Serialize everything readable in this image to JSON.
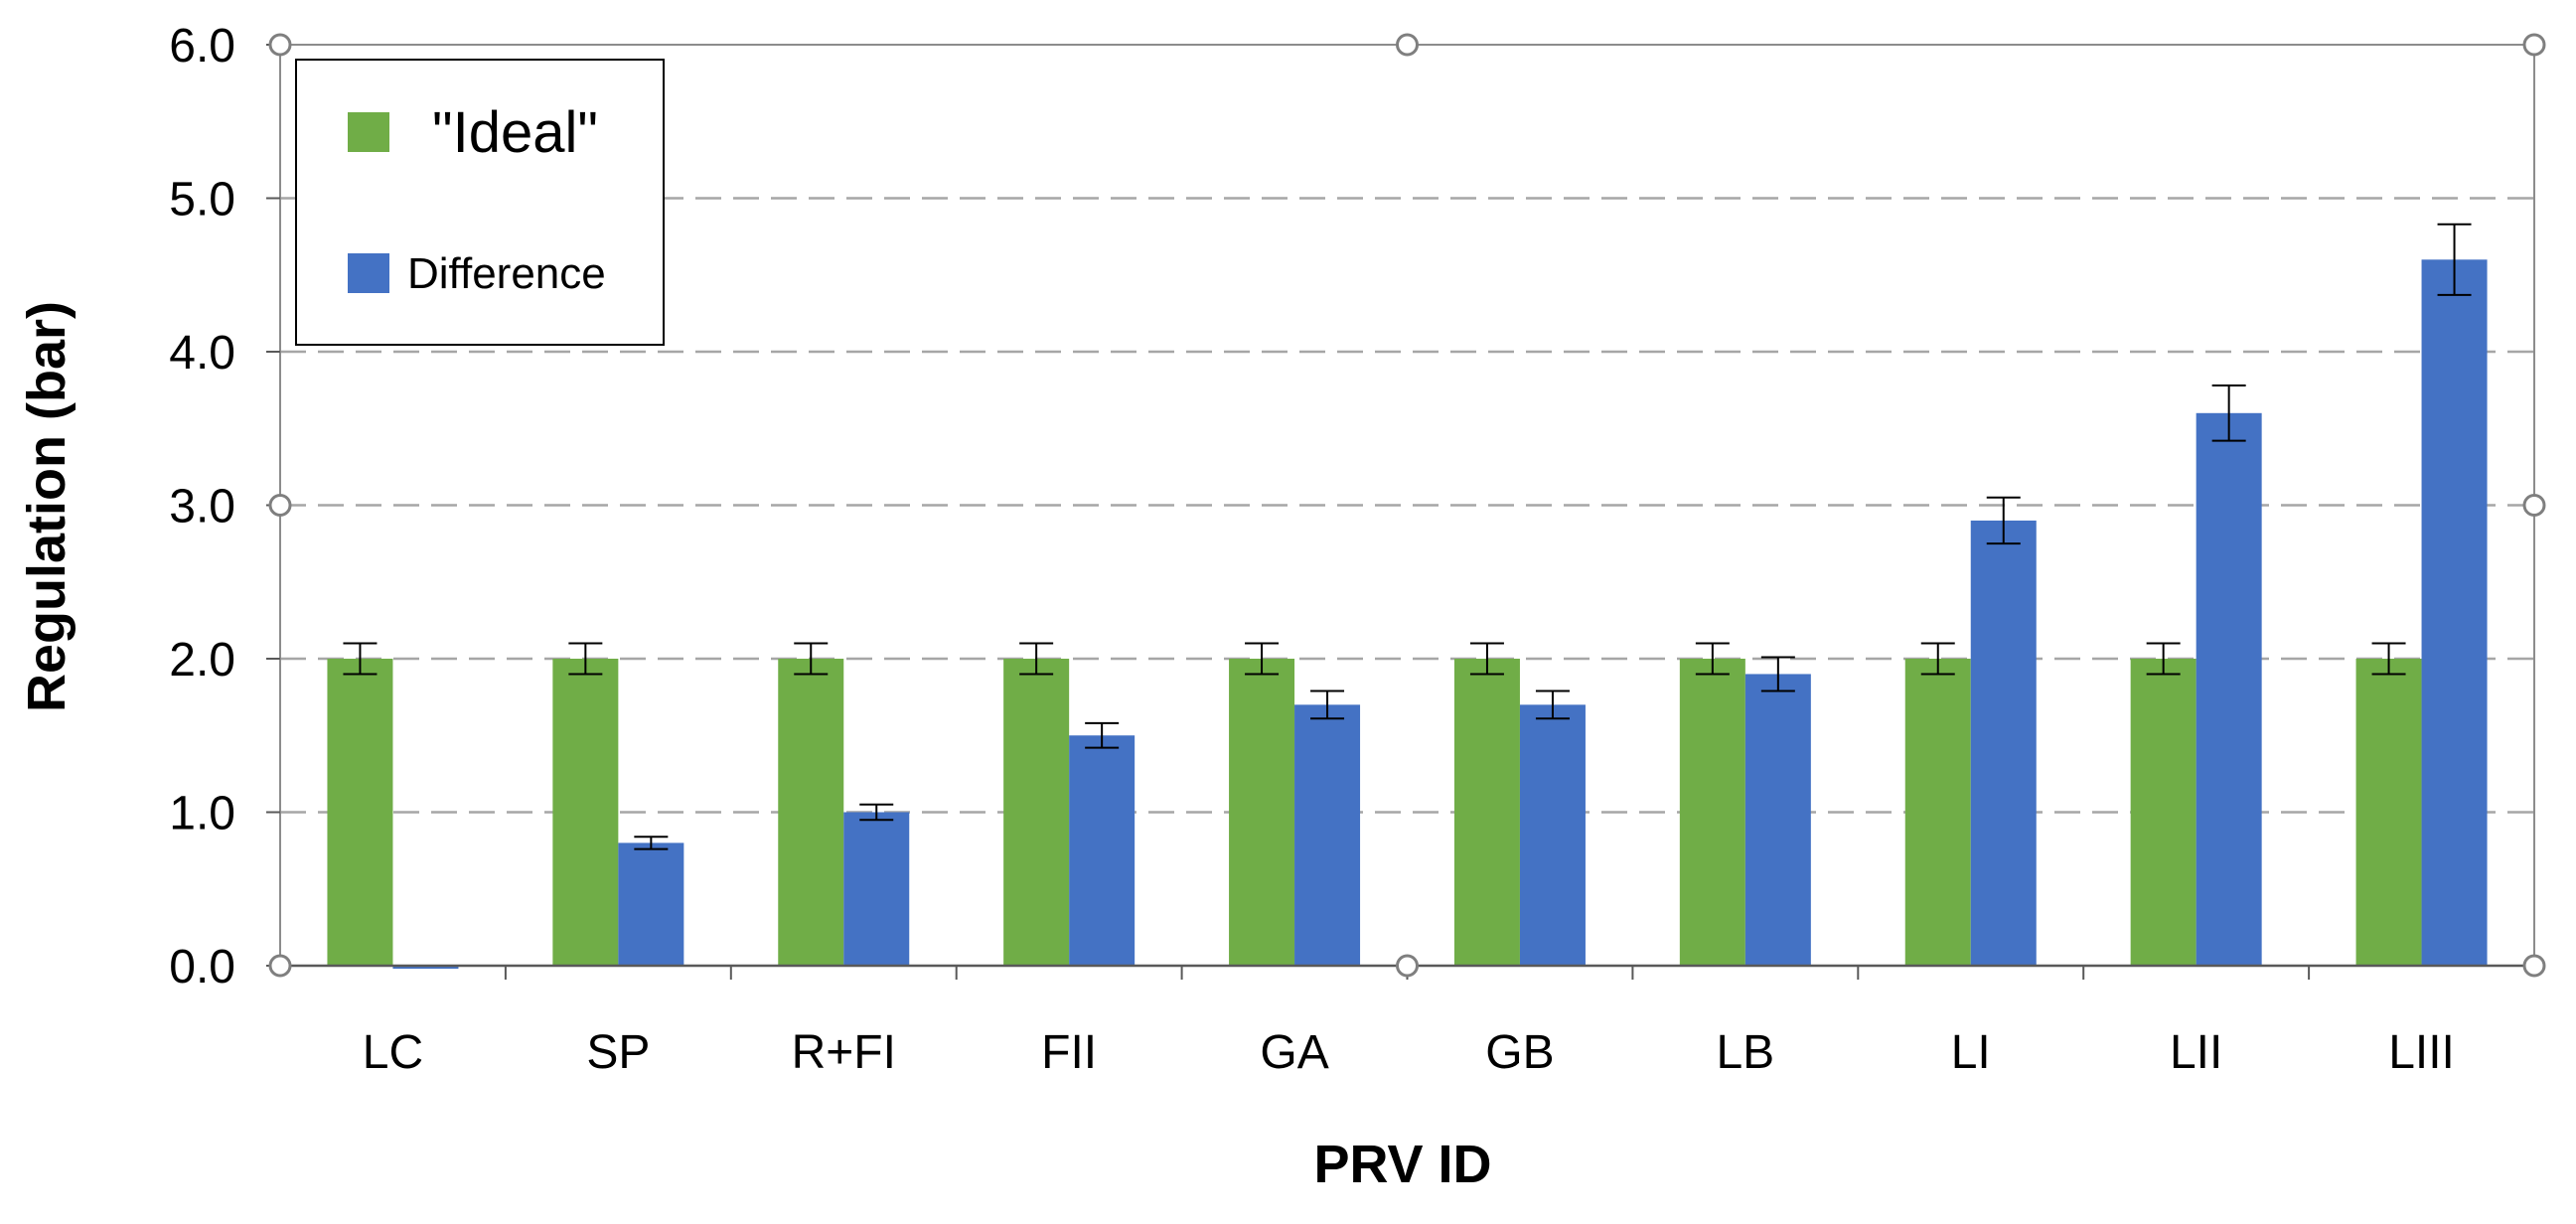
{
  "chart_data": {
    "type": "bar",
    "title": "",
    "xlabel": "PRV ID",
    "ylabel": "Regulation (bar)",
    "ylim": [
      0,
      6
    ],
    "yticks": [
      "0.0",
      "1.0",
      "2.0",
      "3.0",
      "4.0",
      "5.0",
      "6.0"
    ],
    "grid": "horizontal-dashed",
    "legend": "top-left",
    "categories": [
      "LC",
      "SP",
      "R+FI",
      "FII",
      "GA",
      "GB",
      "LB",
      "LI",
      "LII",
      "LIII"
    ],
    "series": [
      {
        "name": "\"Ideal\"",
        "color": "#70AD47",
        "values": [
          2.0,
          2.0,
          2.0,
          2.0,
          2.0,
          2.0,
          2.0,
          2.0,
          2.0,
          2.0
        ],
        "errors": [
          0.1,
          0.1,
          0.1,
          0.1,
          0.1,
          0.1,
          0.1,
          0.1,
          0.1,
          0.1
        ]
      },
      {
        "name": "Difference",
        "color": "#4472C4",
        "values": [
          -0.02,
          0.8,
          1.0,
          1.5,
          1.7,
          1.7,
          1.9,
          2.9,
          3.6,
          4.6
        ],
        "errors": [
          0.0,
          0.04,
          0.05,
          0.08,
          0.09,
          0.09,
          0.11,
          0.15,
          0.18,
          0.23
        ]
      }
    ]
  }
}
